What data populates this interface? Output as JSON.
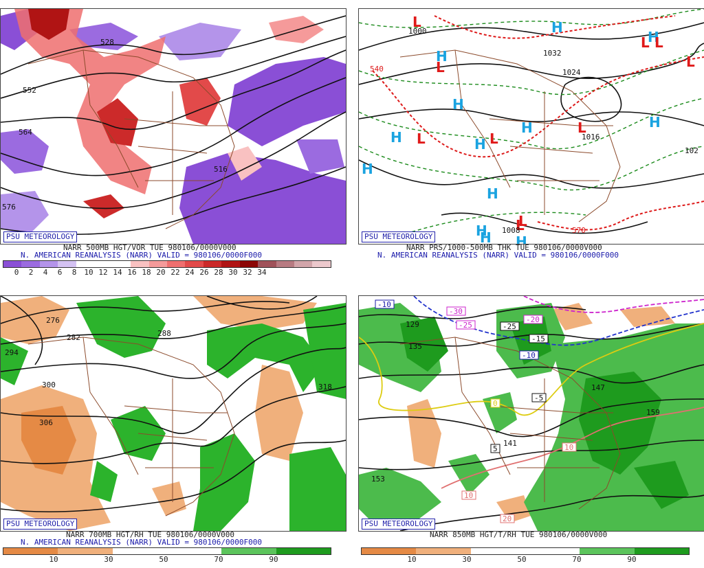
{
  "panels": [
    {
      "credit": "PSU METEOROLOGY",
      "title": "NARR 500MB HGT/VOR TUE 980106/0000V000",
      "subtitle": "N. AMERICAN REANALYSIS (NARR) VALID = 980106/0000F000",
      "contour_labels": [
        "552",
        "564",
        "528",
        "516",
        "576"
      ],
      "legend_ticks": [
        "0",
        "2",
        "4",
        "6",
        "8",
        "10",
        "12",
        "14",
        "16",
        "18",
        "20",
        "22",
        "24",
        "26",
        "28",
        "30",
        "32",
        "34"
      ],
      "legend_colors": [
        "#8a4fd6",
        "#9b6be0",
        "#b494ea",
        "#d4c2f3",
        "#ffffff",
        "#ffffff",
        "#ffffff",
        "#f9c1c1",
        "#f59a9a",
        "#ef6f6f",
        "#e24a4a",
        "#cc2a2a",
        "#b01414",
        "#8c0606",
        "#a0525a",
        "#b87b82",
        "#d2a5aa",
        "#ecc8cc"
      ]
    },
    {
      "credit": "PSU METEOROLOGY",
      "title": "NARR PRS/1000-500MB THK TUE 980106/0000V000",
      "subtitle": "N. AMERICAN REANALYSIS (NARR) VALID = 980106/0000F000",
      "contour_labels": [
        "1000",
        "1032",
        "1024",
        "1016",
        "1008",
        "540",
        "570",
        "102"
      ],
      "high_label": "H",
      "low_label": "L"
    },
    {
      "credit": "PSU METEOROLOGY",
      "title": "NARR 700MB HGT/RH TUE 980106/0000V000",
      "subtitle": "N. AMERICAN REANALYSIS (NARR) VALID = 980106/0000F000",
      "contour_labels": [
        "276",
        "282",
        "288",
        "294",
        "300",
        "306",
        "318"
      ],
      "legend_ticks": [
        "10",
        "30",
        "50",
        "70",
        "90"
      ],
      "legend_colors": [
        "#e58a45",
        "#f0b07c",
        "#ffffff",
        "#ffffff",
        "#5cc45c",
        "#1e9b1e"
      ]
    },
    {
      "credit": "PSU METEOROLOGY",
      "title": "NARR 850MB HGT/T/RH TUE 980106/0000V000",
      "subtitle": "",
      "contour_labels": [
        "129",
        "135",
        "141",
        "147",
        "153",
        "159"
      ],
      "temp_labels": [
        "-10",
        "-30",
        "-25",
        "-20",
        "-15",
        "-5",
        "0",
        "5",
        "10",
        "15",
        "20"
      ],
      "legend_ticks": [
        "10",
        "30",
        "50",
        "70",
        "90"
      ],
      "legend_colors": [
        "#e58a45",
        "#f0b07c",
        "#ffffff",
        "#ffffff",
        "#5cc45c",
        "#1e9b1e"
      ]
    }
  ]
}
